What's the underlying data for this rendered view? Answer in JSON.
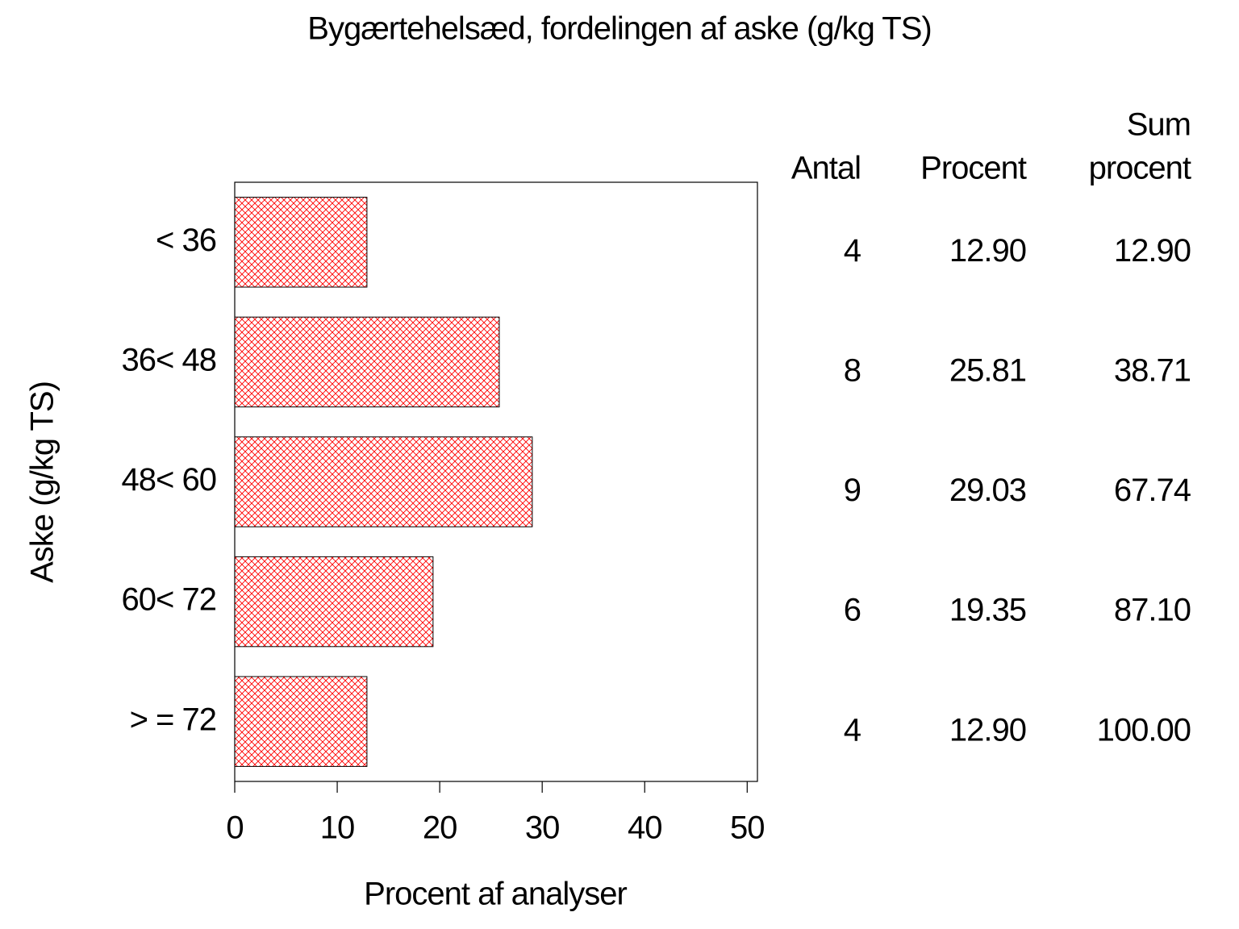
{
  "chart_data": {
    "type": "bar",
    "orientation": "horizontal",
    "title": "Bygærtehelsæd, fordelingen af aske (g/kg TS)",
    "x_label": "Procent af analyser",
    "y_label": "Aske (g/kg TS)",
    "categories": [
      "< 36",
      "36< 48",
      "48< 60",
      "60< 72",
      "> = 72"
    ],
    "values": [
      12.9,
      25.81,
      29.03,
      19.35,
      12.9
    ],
    "value_labels": [
      "12.90",
      "25.81",
      "29.03",
      "19.35",
      "12.90"
    ],
    "color": "#ff0000",
    "pattern": "crosshatch",
    "xlim": [
      0,
      51
    ],
    "xticks": [
      0,
      10,
      20,
      30,
      40,
      50
    ]
  },
  "table": {
    "headers": [
      [
        "Antal"
      ],
      [
        "Procent"
      ],
      [
        "Sum",
        "procent"
      ]
    ],
    "counts": [
      4,
      8,
      9,
      6,
      4
    ],
    "cumulative": [
      12.9,
      38.71,
      67.74,
      87.1,
      100
    ],
    "cumulative_labels": [
      "12.90",
      "38.71",
      "67.74",
      "87.10",
      "100.00"
    ]
  }
}
